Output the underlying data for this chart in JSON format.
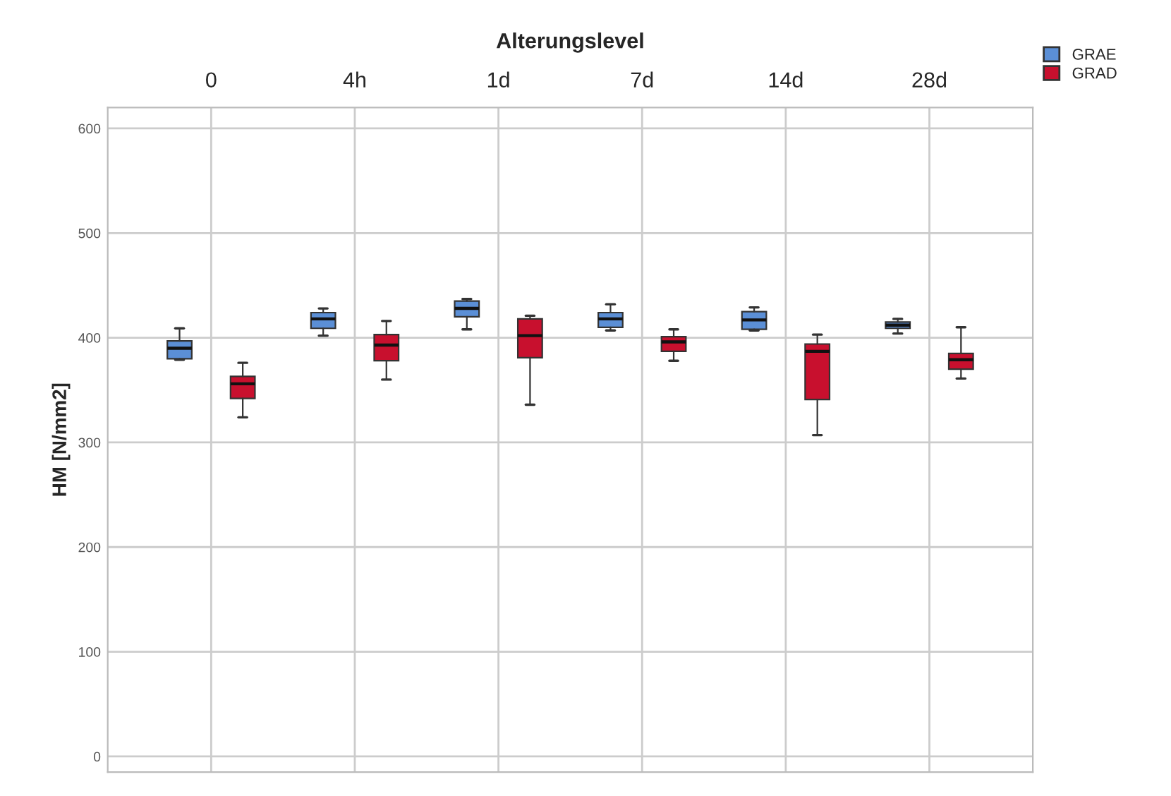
{
  "chart_data": {
    "type": "box",
    "xlabel": "Alterungslevel",
    "ylabel": "HM [N/mm2]",
    "categories": [
      "0",
      "4h",
      "1d",
      "7d",
      "14d",
      "28d"
    ],
    "ylim": [
      -15,
      620
    ],
    "yticks": [
      0,
      100,
      200,
      300,
      400,
      500,
      600
    ],
    "grid": true,
    "legend": "top right",
    "series": [
      {
        "name": "GRAE",
        "color": "#5b8fd6",
        "boxes": [
          {
            "low": 379,
            "q1": 380,
            "median": 390,
            "q3": 397,
            "high": 409
          },
          {
            "low": 402,
            "q1": 409,
            "median": 418,
            "q3": 424,
            "high": 428
          },
          {
            "low": 408,
            "q1": 420,
            "median": 428,
            "q3": 435,
            "high": 437
          },
          {
            "low": 407,
            "q1": 410,
            "median": 418,
            "q3": 424,
            "high": 432
          },
          {
            "low": 407,
            "q1": 408,
            "median": 417,
            "q3": 425,
            "high": 429
          },
          {
            "low": 404,
            "q1": 409,
            "median": 412,
            "q3": 415,
            "high": 418
          }
        ]
      },
      {
        "name": "GRAD",
        "color": "#c8102e",
        "boxes": [
          {
            "low": 324,
            "q1": 342,
            "median": 356,
            "q3": 363,
            "high": 376
          },
          {
            "low": 360,
            "q1": 378,
            "median": 393,
            "q3": 403,
            "high": 416
          },
          {
            "low": 336,
            "q1": 381,
            "median": 402,
            "q3": 418,
            "high": 421
          },
          {
            "low": 378,
            "q1": 387,
            "median": 396,
            "q3": 401,
            "high": 408
          },
          {
            "low": 307,
            "q1": 341,
            "median": 387,
            "q3": 394,
            "high": 403
          },
          {
            "low": 361,
            "q1": 370,
            "median": 379,
            "q3": 385,
            "high": 410
          }
        ]
      }
    ]
  }
}
